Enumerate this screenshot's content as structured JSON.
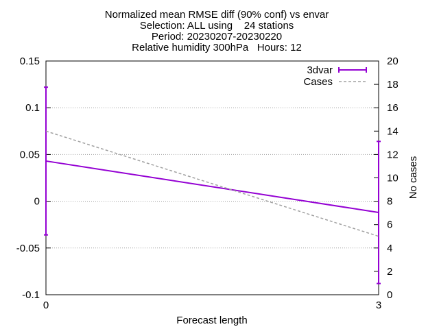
{
  "chart_data": {
    "type": "line",
    "title_lines": [
      "Normalized mean RMSE diff (90% conf) vs envar",
      "Selection: ALL using    24 stations",
      "Period: 20230207-20230220",
      "Relative humidity 300hPa   Hours: 12"
    ],
    "xlabel": "Forecast length",
    "ylabel": "",
    "y2label": "No cases",
    "xlim": [
      0,
      3
    ],
    "ylim": [
      -0.1,
      0.15
    ],
    "y2lim": [
      0,
      20
    ],
    "x_ticks": [
      "0",
      "3"
    ],
    "y_ticks": [
      "-0.1",
      "-0.05",
      "0",
      "0.05",
      "0.1",
      "0.15"
    ],
    "y2_ticks": [
      "0",
      "2",
      "4",
      "6",
      "8",
      "10",
      "12",
      "14",
      "16",
      "18",
      "20"
    ],
    "grid": true,
    "legend_position": "top-right",
    "series": [
      {
        "name": "3dvar",
        "axis": "y",
        "style": "solid-with-errorbars",
        "color": "#9400d3",
        "x": [
          0,
          3
        ],
        "y": [
          0.043,
          -0.012
        ],
        "y_low": [
          -0.036,
          -0.088
        ],
        "y_high": [
          0.122,
          0.064
        ]
      },
      {
        "name": "Cases",
        "axis": "y2",
        "style": "dashed",
        "color": "#a0a0a0",
        "x": [
          0,
          3
        ],
        "y": [
          14,
          5
        ]
      }
    ]
  }
}
